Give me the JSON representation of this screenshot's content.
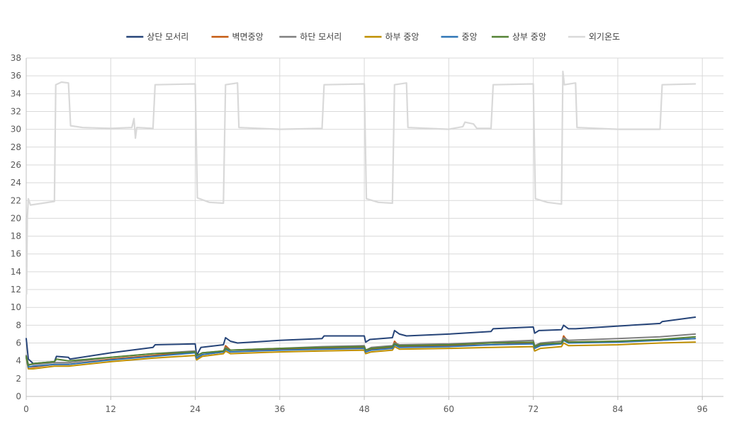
{
  "chart_data": {
    "type": "line",
    "title": "",
    "xlabel": "",
    "ylabel": "",
    "xlim": [
      0,
      99
    ],
    "ylim": [
      0,
      38
    ],
    "x_ticks": [
      0,
      12,
      24,
      36,
      48,
      60,
      72,
      84,
      96
    ],
    "y_ticks": [
      0,
      2,
      4,
      6,
      8,
      10,
      12,
      14,
      16,
      18,
      20,
      22,
      24,
      26,
      28,
      30,
      32,
      34,
      36,
      38
    ],
    "grid": true,
    "legend_position": "top",
    "series": [
      {
        "name": "상단 모서리",
        "color": "#264478",
        "points": [
          [
            0,
            6.5
          ],
          [
            0.3,
            4.2
          ],
          [
            1,
            3.7
          ],
          [
            4,
            3.9
          ],
          [
            4.3,
            4.5
          ],
          [
            6,
            4.4
          ],
          [
            6.2,
            4.2
          ],
          [
            12,
            4.9
          ],
          [
            18,
            5.5
          ],
          [
            18.3,
            5.8
          ],
          [
            24,
            5.9
          ],
          [
            24.2,
            4.6
          ],
          [
            24.8,
            5.5
          ],
          [
            28,
            5.8
          ],
          [
            28.3,
            6.6
          ],
          [
            29,
            6.2
          ],
          [
            30,
            6.0
          ],
          [
            36,
            6.3
          ],
          [
            42,
            6.5
          ],
          [
            42.3,
            6.8
          ],
          [
            48,
            6.8
          ],
          [
            48.2,
            6.1
          ],
          [
            48.8,
            6.4
          ],
          [
            52,
            6.6
          ],
          [
            52.3,
            7.4
          ],
          [
            53,
            7.0
          ],
          [
            54,
            6.8
          ],
          [
            60,
            7.0
          ],
          [
            66,
            7.3
          ],
          [
            66.3,
            7.6
          ],
          [
            72,
            7.8
          ],
          [
            72.2,
            7.1
          ],
          [
            72.8,
            7.4
          ],
          [
            76,
            7.5
          ],
          [
            76.3,
            8.0
          ],
          [
            77,
            7.6
          ],
          [
            78,
            7.6
          ],
          [
            84,
            7.9
          ],
          [
            90,
            8.2
          ],
          [
            90.3,
            8.4
          ],
          [
            95,
            8.9
          ]
        ]
      },
      {
        "name": "벽면중앙",
        "color": "#C55A11",
        "points": [
          [
            0,
            4.5
          ],
          [
            0.3,
            3.3
          ],
          [
            1,
            3.3
          ],
          [
            4,
            3.6
          ],
          [
            6,
            3.6
          ],
          [
            12,
            4.2
          ],
          [
            18,
            4.6
          ],
          [
            24,
            5.0
          ],
          [
            24.2,
            4.3
          ],
          [
            25,
            4.7
          ],
          [
            28,
            5.0
          ],
          [
            28.3,
            5.7
          ],
          [
            29,
            5.2
          ],
          [
            36,
            5.3
          ],
          [
            42,
            5.4
          ],
          [
            48,
            5.5
          ],
          [
            48.2,
            5.0
          ],
          [
            49,
            5.3
          ],
          [
            52,
            5.5
          ],
          [
            52.3,
            6.2
          ],
          [
            53,
            5.6
          ],
          [
            60,
            5.7
          ],
          [
            66,
            5.8
          ],
          [
            72,
            6.0
          ],
          [
            72.2,
            5.4
          ],
          [
            73,
            5.8
          ],
          [
            76,
            6.0
          ],
          [
            76.3,
            6.8
          ],
          [
            77,
            6.1
          ],
          [
            84,
            6.2
          ],
          [
            90,
            6.3
          ],
          [
            95,
            6.5
          ]
        ]
      },
      {
        "name": "하단 모서리",
        "color": "#7F7F7F",
        "points": [
          [
            0,
            4.6
          ],
          [
            0.3,
            3.6
          ],
          [
            1,
            3.6
          ],
          [
            4,
            3.8
          ],
          [
            6,
            3.8
          ],
          [
            12,
            4.4
          ],
          [
            18,
            4.8
          ],
          [
            24,
            5.1
          ],
          [
            24.2,
            4.5
          ],
          [
            25,
            4.9
          ],
          [
            28,
            5.1
          ],
          [
            28.3,
            5.5
          ],
          [
            29,
            5.2
          ],
          [
            36,
            5.4
          ],
          [
            42,
            5.6
          ],
          [
            48,
            5.7
          ],
          [
            48.2,
            5.2
          ],
          [
            49,
            5.5
          ],
          [
            52,
            5.7
          ],
          [
            52.3,
            6.0
          ],
          [
            53,
            5.8
          ],
          [
            60,
            5.9
          ],
          [
            66,
            6.1
          ],
          [
            72,
            6.3
          ],
          [
            72.2,
            5.7
          ],
          [
            73,
            6.0
          ],
          [
            76,
            6.2
          ],
          [
            76.3,
            6.6
          ],
          [
            77,
            6.3
          ],
          [
            84,
            6.5
          ],
          [
            90,
            6.7
          ],
          [
            95,
            7.0
          ]
        ]
      },
      {
        "name": "하부 중앙",
        "color": "#BF8F00",
        "points": [
          [
            0,
            4.3
          ],
          [
            0.3,
            3.1
          ],
          [
            1,
            3.1
          ],
          [
            4,
            3.4
          ],
          [
            6,
            3.4
          ],
          [
            12,
            3.9
          ],
          [
            18,
            4.3
          ],
          [
            24,
            4.6
          ],
          [
            24.2,
            4.1
          ],
          [
            25,
            4.5
          ],
          [
            28,
            4.8
          ],
          [
            28.3,
            5.1
          ],
          [
            29,
            4.8
          ],
          [
            36,
            5.0
          ],
          [
            42,
            5.1
          ],
          [
            48,
            5.2
          ],
          [
            48.2,
            4.8
          ],
          [
            49,
            5.0
          ],
          [
            52,
            5.2
          ],
          [
            52.3,
            5.6
          ],
          [
            53,
            5.3
          ],
          [
            60,
            5.4
          ],
          [
            66,
            5.5
          ],
          [
            72,
            5.6
          ],
          [
            72.2,
            5.1
          ],
          [
            73,
            5.4
          ],
          [
            76,
            5.6
          ],
          [
            76.3,
            6.0
          ],
          [
            77,
            5.7
          ],
          [
            84,
            5.8
          ],
          [
            90,
            6.0
          ],
          [
            95,
            6.1
          ]
        ]
      },
      {
        "name": "중앙",
        "color": "#2E75B6",
        "points": [
          [
            0,
            4.4
          ],
          [
            0.3,
            3.3
          ],
          [
            1,
            3.4
          ],
          [
            4,
            3.6
          ],
          [
            6,
            3.6
          ],
          [
            12,
            4.1
          ],
          [
            18,
            4.5
          ],
          [
            24,
            4.9
          ],
          [
            24.2,
            4.3
          ],
          [
            25,
            4.7
          ],
          [
            28,
            5.0
          ],
          [
            28.3,
            5.3
          ],
          [
            29,
            5.0
          ],
          [
            36,
            5.2
          ],
          [
            42,
            5.3
          ],
          [
            48,
            5.4
          ],
          [
            48.2,
            5.0
          ],
          [
            49,
            5.2
          ],
          [
            52,
            5.4
          ],
          [
            52.3,
            5.8
          ],
          [
            53,
            5.5
          ],
          [
            60,
            5.6
          ],
          [
            66,
            5.8
          ],
          [
            72,
            5.9
          ],
          [
            72.2,
            5.4
          ],
          [
            73,
            5.7
          ],
          [
            76,
            5.9
          ],
          [
            76.3,
            6.3
          ],
          [
            77,
            6.0
          ],
          [
            84,
            6.1
          ],
          [
            90,
            6.3
          ],
          [
            95,
            6.5
          ]
        ]
      },
      {
        "name": "상부 중앙",
        "color": "#548235",
        "points": [
          [
            0,
            4.5
          ],
          [
            0.3,
            3.5
          ],
          [
            1,
            3.7
          ],
          [
            4,
            3.9
          ],
          [
            4.3,
            4.2
          ],
          [
            6,
            4.0
          ],
          [
            12,
            4.4
          ],
          [
            18,
            4.8
          ],
          [
            24,
            5.0
          ],
          [
            24.2,
            4.6
          ],
          [
            25,
            4.9
          ],
          [
            28,
            5.1
          ],
          [
            28.3,
            5.4
          ],
          [
            29,
            5.2
          ],
          [
            36,
            5.4
          ],
          [
            42,
            5.5
          ],
          [
            48,
            5.6
          ],
          [
            48.2,
            5.2
          ],
          [
            49,
            5.4
          ],
          [
            52,
            5.6
          ],
          [
            52.3,
            5.9
          ],
          [
            53,
            5.7
          ],
          [
            60,
            5.8
          ],
          [
            66,
            6.0
          ],
          [
            72,
            6.1
          ],
          [
            72.2,
            5.6
          ],
          [
            73,
            5.9
          ],
          [
            76,
            6.0
          ],
          [
            76.3,
            6.4
          ],
          [
            77,
            6.1
          ],
          [
            84,
            6.2
          ],
          [
            90,
            6.4
          ],
          [
            95,
            6.7
          ]
        ]
      },
      {
        "name": "외기온도",
        "color": "#D9D9D9",
        "points": [
          [
            0,
            20.0
          ],
          [
            0.05,
            11.5
          ],
          [
            0.15,
            20.0
          ],
          [
            0.3,
            22.2
          ],
          [
            0.6,
            21.5
          ],
          [
            4,
            21.9
          ],
          [
            4.2,
            35.0
          ],
          [
            5,
            35.3
          ],
          [
            6,
            35.2
          ],
          [
            6.3,
            30.4
          ],
          [
            8,
            30.2
          ],
          [
            12,
            30.1
          ],
          [
            15,
            30.2
          ],
          [
            15.3,
            31.2
          ],
          [
            15.5,
            29.0
          ],
          [
            15.7,
            30.2
          ],
          [
            18,
            30.1
          ],
          [
            18.3,
            35.0
          ],
          [
            24,
            35.1
          ],
          [
            24.3,
            22.3
          ],
          [
            26,
            21.8
          ],
          [
            28,
            21.7
          ],
          [
            28.3,
            35.0
          ],
          [
            30,
            35.2
          ],
          [
            30.2,
            30.2
          ],
          [
            36,
            30.0
          ],
          [
            42,
            30.1
          ],
          [
            42.3,
            35.0
          ],
          [
            48,
            35.1
          ],
          [
            48.3,
            22.2
          ],
          [
            50,
            21.8
          ],
          [
            52,
            21.7
          ],
          [
            52.3,
            35.0
          ],
          [
            54,
            35.2
          ],
          [
            54.2,
            30.2
          ],
          [
            60,
            30.0
          ],
          [
            62,
            30.3
          ],
          [
            62.3,
            30.8
          ],
          [
            63.5,
            30.6
          ],
          [
            64,
            30.1
          ],
          [
            66,
            30.1
          ],
          [
            66.3,
            35.0
          ],
          [
            72,
            35.1
          ],
          [
            72.3,
            22.2
          ],
          [
            74,
            21.8
          ],
          [
            76,
            21.6
          ],
          [
            76.2,
            36.5
          ],
          [
            76.4,
            35.0
          ],
          [
            78,
            35.2
          ],
          [
            78.2,
            30.2
          ],
          [
            84,
            30.0
          ],
          [
            90,
            30.0
          ],
          [
            90.3,
            35.0
          ],
          [
            95,
            35.1
          ]
        ]
      }
    ]
  }
}
